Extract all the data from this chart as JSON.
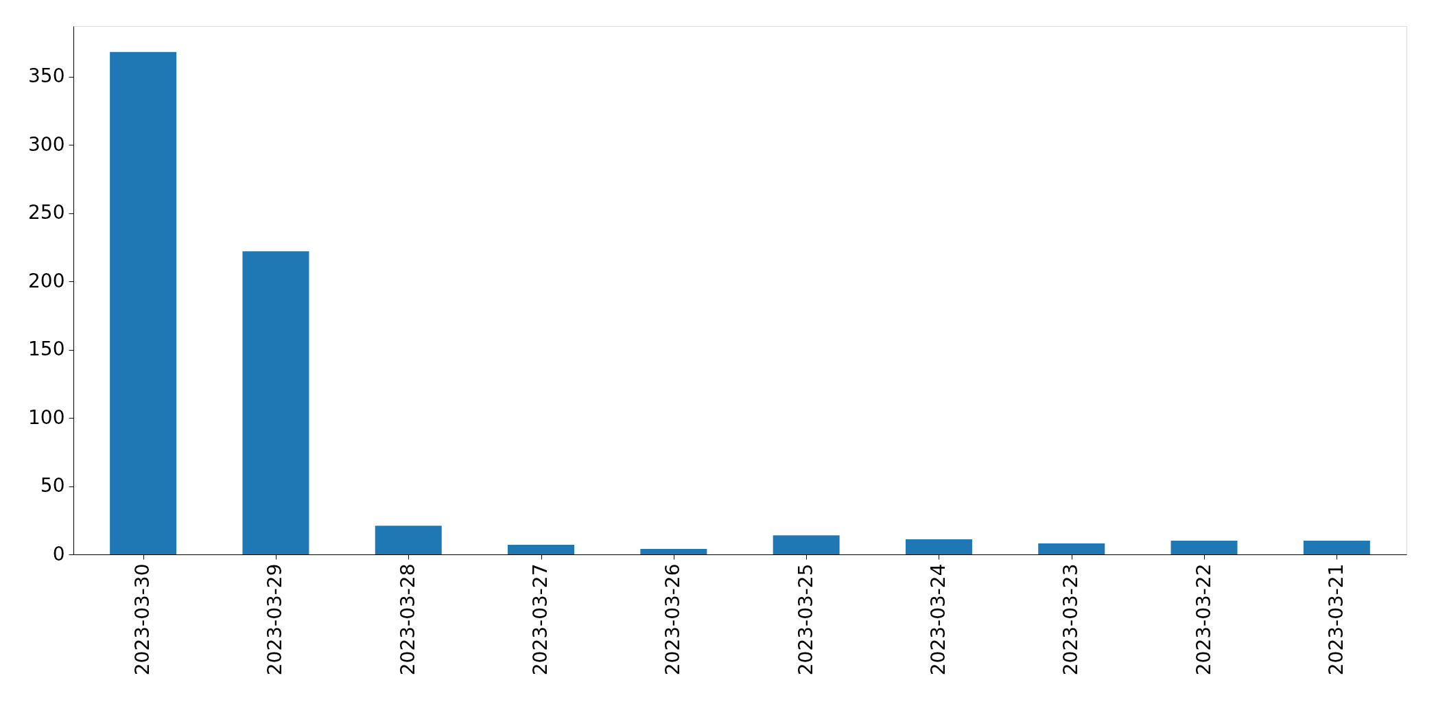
{
  "chart_data": {
    "type": "bar",
    "categories": [
      "2023-03-30",
      "2023-03-29",
      "2023-03-28",
      "2023-03-27",
      "2023-03-26",
      "2023-03-25",
      "2023-03-24",
      "2023-03-23",
      "2023-03-22",
      "2023-03-21"
    ],
    "values": [
      368,
      222,
      21,
      7,
      4,
      14,
      11,
      8,
      10,
      10
    ],
    "color": "#1f77b4",
    "ylim": [
      0,
      387
    ],
    "yticks": [
      0,
      50,
      100,
      150,
      200,
      250,
      300,
      350
    ],
    "grid": false
  }
}
